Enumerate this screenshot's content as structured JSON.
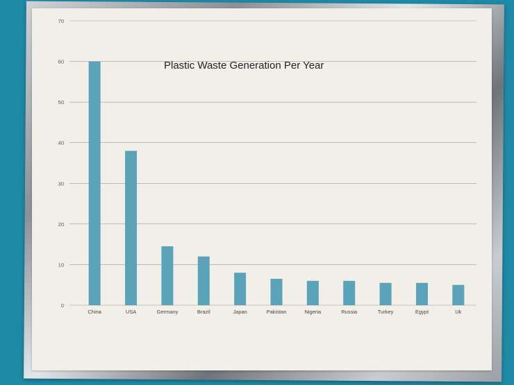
{
  "chart_data": {
    "type": "bar",
    "title": "Plastic Waste Generation Per Year",
    "xlabel": "",
    "ylabel": "",
    "ylim": [
      0,
      70
    ],
    "yticks": [
      "0",
      "10",
      "20",
      "30",
      "40",
      "50",
      "60",
      "70"
    ],
    "grid": true,
    "categories": [
      "China",
      "USA",
      "Germany",
      "Brazil",
      "Japan",
      "Pakistan",
      "Nigeria",
      "Russia",
      "Turkey",
      "Egypt",
      "Uk"
    ],
    "values": [
      60,
      38,
      14.5,
      12,
      8,
      6.5,
      6,
      6,
      5.5,
      5.5,
      5
    ],
    "bar_color": "#5ba3b8"
  }
}
